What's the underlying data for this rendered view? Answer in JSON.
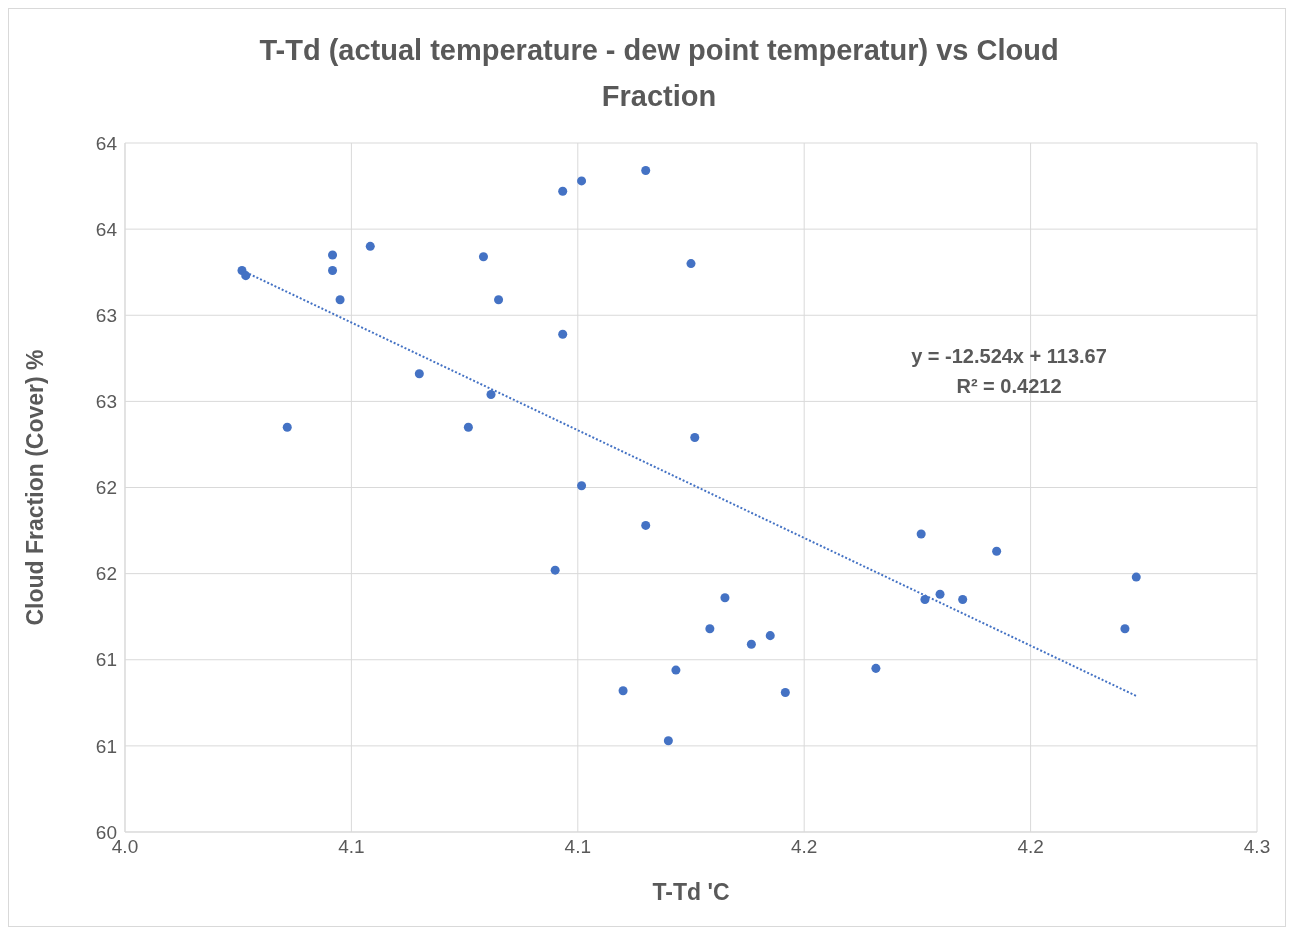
{
  "chart_data": {
    "type": "scatter",
    "title": "T-Td (actual temperature - dew point temperatur) vs Cloud Fraction",
    "xlabel": "T-Td 'C",
    "ylabel": "Cloud Fraction (Cover) %",
    "annotations": [
      "y = -12.524x + 113.67",
      "R² = 0.4212"
    ],
    "series": [
      {
        "marker": "circle",
        "color": "#4472c4",
        "x": [
          4.031,
          4.032,
          4.043,
          4.055,
          4.055,
          4.057,
          4.065,
          4.078,
          4.091,
          4.095,
          4.097,
          4.099,
          4.114,
          4.116,
          4.116,
          4.121,
          4.121,
          4.132,
          4.138,
          4.138,
          4.144,
          4.146,
          4.15,
          4.151,
          4.155,
          4.159,
          4.166,
          4.171,
          4.175,
          4.199,
          4.211,
          4.212,
          4.216,
          4.222,
          4.231,
          4.265,
          4.268
        ],
        "values": [
          63.26,
          63.23,
          62.35,
          63.35,
          63.26,
          63.09,
          63.4,
          62.66,
          62.35,
          63.34,
          62.54,
          63.09,
          61.52,
          63.72,
          62.89,
          63.78,
          62.01,
          60.82,
          63.84,
          61.78,
          60.53,
          60.94,
          63.3,
          62.29,
          61.18,
          61.36,
          61.09,
          61.14,
          60.81,
          60.95,
          61.73,
          61.35,
          61.38,
          61.35,
          61.63,
          61.18,
          61.48
        ]
      },
      {
        "type": "line",
        "marker": "none",
        "color": "#4472c4",
        "line_style": "dotted",
        "x": [
          4.031,
          4.268
        ],
        "values": [
          63.26,
          60.79
        ]
      }
    ],
    "grid": true,
    "xlim": [
      4.0,
      4.3
    ],
    "xticks": [
      {
        "value": 4.0,
        "label": "4.0"
      },
      {
        "value": 4.06,
        "label": "4.1"
      },
      {
        "value": 4.12,
        "label": "4.1"
      },
      {
        "value": 4.18,
        "label": "4.2"
      },
      {
        "value": 4.24,
        "label": "4.2"
      },
      {
        "value": 4.3,
        "label": "4.3"
      }
    ],
    "ylim": [
      60,
      64
    ],
    "yticks": [
      60,
      {
        "value": 60.5,
        "label": "61"
      },
      61,
      {
        "value": 61.5,
        "label": "62"
      },
      62,
      {
        "value": 62.5,
        "label": "63"
      },
      63,
      {
        "value": 63.5,
        "label": "64"
      },
      64
    ]
  }
}
